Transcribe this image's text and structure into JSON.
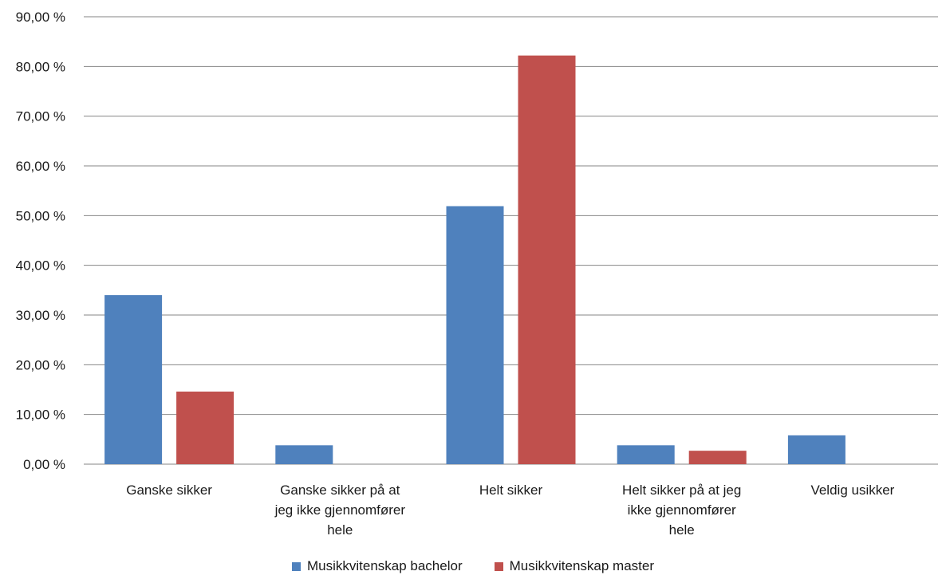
{
  "chart_data": {
    "type": "bar",
    "categories": [
      [
        "Ganske sikker"
      ],
      [
        "Ganske sikker på at",
        "jeg ikke gjennomfører",
        "hele"
      ],
      [
        "Helt sikker"
      ],
      [
        "Helt sikker på at jeg",
        "ikke gjennomfører",
        "hele"
      ],
      [
        "Veldig usikker"
      ]
    ],
    "series": [
      {
        "name": "Musikkvitenskap bachelor",
        "color": "#4f81bd",
        "values": [
          34.0,
          3.8,
          51.9,
          3.8,
          5.8
        ]
      },
      {
        "name": "Musikkvitenskap master",
        "color": "#c0504d",
        "values": [
          14.6,
          0,
          82.2,
          2.7,
          0
        ]
      }
    ],
    "y_ticks": [
      "0,00 %",
      "10,00 %",
      "20,00 %",
      "30,00 %",
      "40,00 %",
      "50,00 %",
      "60,00 %",
      "70,00 %",
      "80,00 %",
      "90,00 %"
    ],
    "ylim": [
      0,
      90
    ],
    "grid": true,
    "legend_position": "bottom"
  }
}
